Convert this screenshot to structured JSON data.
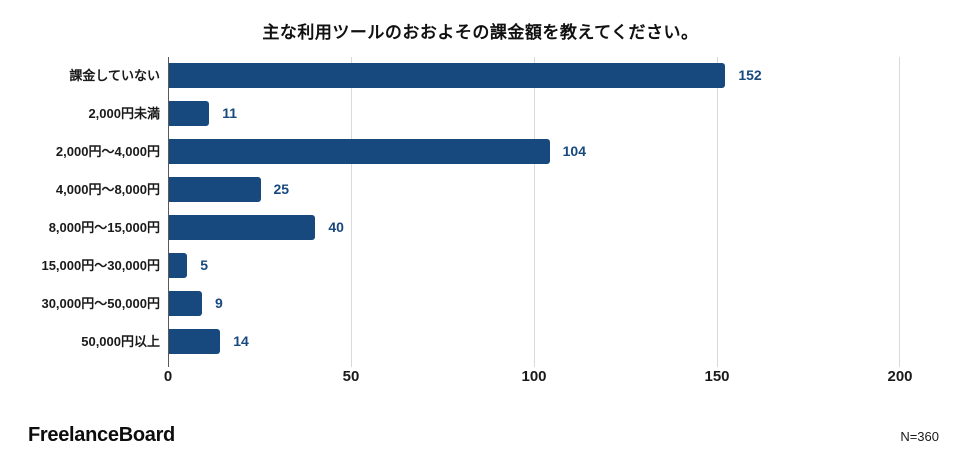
{
  "chart_data": {
    "type": "bar",
    "orientation": "horizontal",
    "title": "主な利用ツールのおおよその課金額を教えてください。",
    "categories": [
      "課金していない",
      "2,000円未満",
      "2,000円〜4,000円",
      "4,000円〜8,000円",
      "8,000円〜15,000円",
      "15,000円〜30,000円",
      "30,000円〜50,000円",
      "50,000円以上"
    ],
    "values": [
      152,
      11,
      104,
      25,
      40,
      5,
      9,
      14
    ],
    "xlabel": "",
    "ylabel": "",
    "xlim": [
      0,
      200
    ],
    "xticks": [
      "0",
      "50",
      "100",
      "150",
      "200"
    ],
    "grid": true,
    "legend": "none",
    "bar_color": "#17497E",
    "value_label_color": "#17497E"
  },
  "footer": {
    "brand": "FreelanceBoard",
    "sample_size": "N=360"
  }
}
